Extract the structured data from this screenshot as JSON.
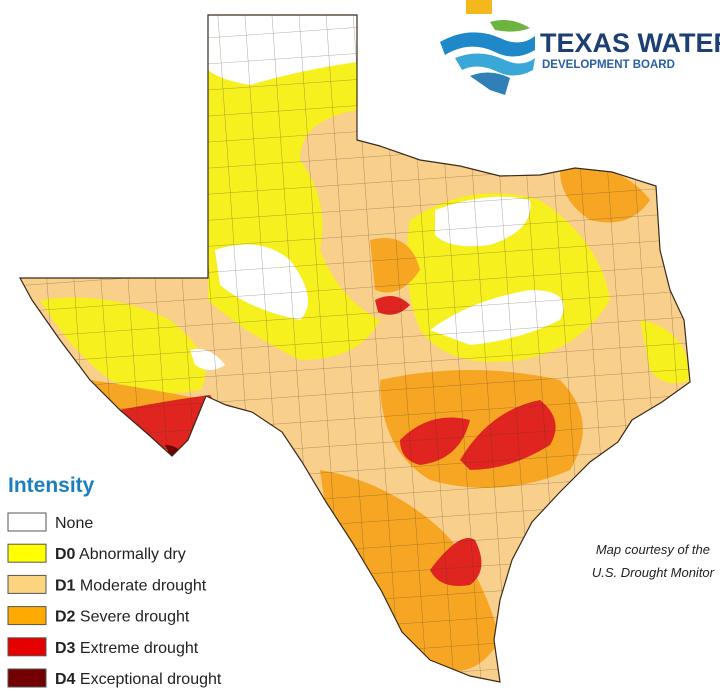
{
  "logo": {
    "line1": "TEXAS WATER",
    "line2": "DEVELOPMENT BOARD"
  },
  "legend": {
    "title": "Intensity",
    "items": [
      {
        "label": "None",
        "color": "#ffffff"
      },
      {
        "code": "D0",
        "label": "Abnormally dry",
        "color": "#ffff00"
      },
      {
        "code": "D1",
        "label": "Moderate drought",
        "color": "#fcd37f"
      },
      {
        "code": "D2",
        "label": "Severe drought",
        "color": "#ffaa00"
      },
      {
        "code": "D3",
        "label": "Extreme drought",
        "color": "#e60000"
      },
      {
        "code": "D4",
        "label": "Exceptional drought",
        "color": "#730000"
      }
    ]
  },
  "credit": {
    "lines": [
      "Map courtesy of the",
      "U.S. Drought Monitor"
    ]
  }
}
